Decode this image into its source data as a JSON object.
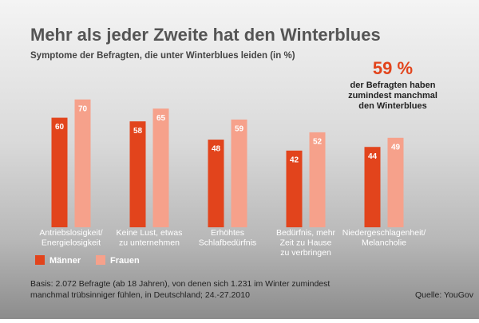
{
  "chart_data": {
    "type": "bar",
    "title": "Mehr als jeder Zweite hat den Winterblues",
    "subtitle": "Symptome der Befragten, die unter Winterblues leiden (in %)",
    "highlight": "59 %",
    "highlight_text": [
      "der Befragten haben",
      "zumindest manchmal",
      "den Winterblues"
    ],
    "categories": [
      [
        "Antriebslosigkeit/",
        "Energielosigkeit"
      ],
      [
        "Keine Lust, etwas",
        "zu unternehmen"
      ],
      [
        "Erhöhtes",
        "Schlafbedürfnis"
      ],
      [
        "Bedürfnis, mehr",
        "Zeit zu Hause",
        "zu verbringen"
      ],
      [
        "Niedergeschlagenheit/",
        "Melancholie"
      ]
    ],
    "series": [
      {
        "name": "Männer",
        "color": "#e2441c",
        "values": [
          60,
          58,
          48,
          42,
          44
        ]
      },
      {
        "name": "Frauen",
        "color": "#f6a18b",
        "values": [
          70,
          65,
          59,
          52,
          49
        ]
      }
    ],
    "ylim": [
      0,
      100
    ],
    "footnote": [
      "Basis: 2.072 Befragte (ab 18 Jahren), von denen sich 1.231 im Winter zumindest",
      "manchmal trübsinniger fühlen, in Deutschland; 24.-27.2010"
    ],
    "source": "Quelle: YouGov"
  }
}
